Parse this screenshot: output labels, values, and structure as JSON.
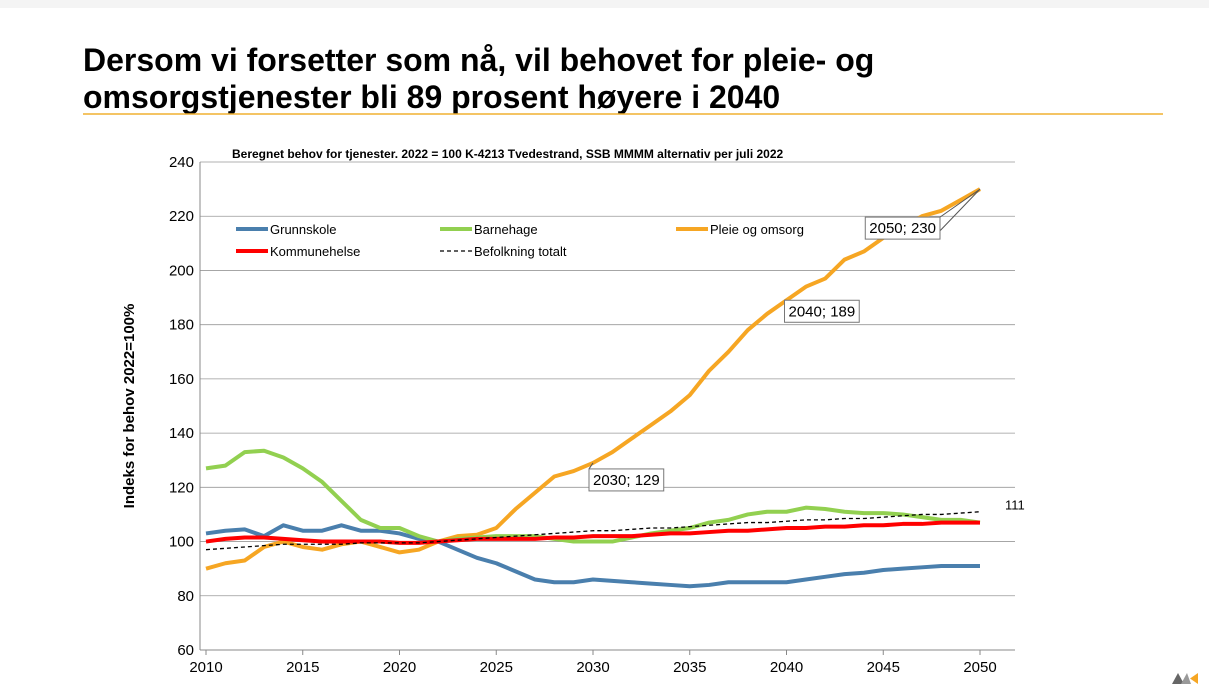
{
  "chart_data": {
    "type": "line",
    "title": [
      "Dersom vi forsetter som nå, vil behovet for pleie- og",
      "omsorgstjenester bli 89 prosent høyere i 2040"
    ],
    "subtitle": "Beregnet behov for tjenester.  2022 = 100  K-4213 Tvedestrand, SSB MMMM alternativ per juli 2022",
    "y_label": "Indeks for behov 2022=100%",
    "x": [
      2010,
      2011,
      2012,
      2013,
      2014,
      2015,
      2016,
      2017,
      2018,
      2019,
      2020,
      2021,
      2022,
      2023,
      2024,
      2025,
      2026,
      2027,
      2028,
      2029,
      2030,
      2031,
      2032,
      2033,
      2034,
      2035,
      2036,
      2037,
      2038,
      2039,
      2040,
      2041,
      2042,
      2043,
      2044,
      2045,
      2046,
      2047,
      2048,
      2049,
      2050
    ],
    "xlim": [
      2010,
      2050
    ],
    "xticks": [
      2010,
      2015,
      2020,
      2025,
      2030,
      2035,
      2040,
      2045,
      2050
    ],
    "ylim": [
      60,
      240
    ],
    "yticks": [
      60,
      80,
      100,
      120,
      140,
      160,
      180,
      200,
      220,
      240
    ],
    "grid": true,
    "series": [
      {
        "name": "Grunnskole",
        "color": "#4a7fad",
        "values": [
          103,
          104,
          104.5,
          102,
          106,
          104,
          104,
          106,
          104,
          104,
          103,
          101,
          100,
          97,
          94,
          92,
          89,
          86,
          85,
          85,
          86,
          85.5,
          85,
          84.5,
          84,
          83.5,
          84,
          85,
          85,
          85,
          85,
          86,
          87,
          88,
          88.5,
          89.5,
          90,
          90.5,
          91,
          91,
          91
        ]
      },
      {
        "name": "Barnehage",
        "color": "#92d050",
        "values": [
          127,
          128,
          133,
          133.5,
          131,
          127,
          122,
          115,
          108,
          105,
          105,
          102,
          100,
          101,
          101.5,
          102,
          102,
          102,
          101,
          100,
          100,
          100,
          101.5,
          103,
          104,
          105,
          107,
          108,
          110,
          111,
          111,
          112.5,
          112,
          111,
          110.5,
          110.5,
          110,
          109,
          108,
          108,
          107
        ]
      },
      {
        "name": "Pleie og omsorg",
        "color": "#f6a623",
        "values": [
          90,
          92,
          93,
          98,
          100,
          98,
          97,
          99,
          100,
          98,
          96,
          97,
          100,
          102,
          102.5,
          105,
          112,
          118,
          124,
          126,
          129,
          133,
          138,
          143,
          148,
          154,
          163,
          170,
          178,
          184,
          189,
          194,
          197,
          204,
          207,
          212,
          216,
          220,
          222,
          226,
          230
        ],
        "value_labels": [
          null,
          null,
          null,
          null,
          null,
          null,
          null,
          null,
          null,
          null,
          null,
          null,
          null,
          null,
          null,
          null,
          null,
          null,
          null,
          null,
          "2030; 129",
          null,
          null,
          null,
          null,
          null,
          null,
          null,
          null,
          null,
          "2040; 189",
          null,
          null,
          null,
          null,
          null,
          null,
          null,
          null,
          null,
          "2050; 230"
        ]
      },
      {
        "name": "Kommunehelse",
        "color": "#ff0000",
        "values": [
          100,
          101,
          101.5,
          101.5,
          101,
          100.5,
          100,
          100,
          100,
          100,
          99.5,
          99.5,
          100,
          100.5,
          101,
          101,
          101,
          101,
          101.5,
          101.5,
          102,
          102,
          102,
          102.5,
          103,
          103,
          103.5,
          104,
          104,
          104.5,
          105,
          105,
          105.5,
          105.5,
          106,
          106,
          106.5,
          106.5,
          107,
          107,
          107
        ]
      },
      {
        "name": "Befolkning totalt",
        "color": "#000000",
        "dashed": true,
        "values": [
          97,
          97.5,
          98,
          98.5,
          99,
          99,
          99,
          99,
          99.5,
          99.5,
          99.5,
          99.5,
          100,
          100.5,
          101,
          101.5,
          102,
          102.5,
          103,
          103.5,
          104,
          104,
          104.5,
          105,
          105,
          105.5,
          106,
          106.5,
          107,
          107,
          107.5,
          108,
          108,
          108.5,
          108.5,
          109,
          109.5,
          110,
          110,
          110.5,
          111
        ],
        "value_labels": [
          null,
          null,
          null,
          null,
          null,
          null,
          null,
          null,
          null,
          null,
          null,
          null,
          null,
          null,
          null,
          null,
          null,
          null,
          null,
          null,
          null,
          null,
          null,
          null,
          null,
          null,
          null,
          null,
          null,
          null,
          null,
          null,
          null,
          null,
          null,
          null,
          null,
          null,
          null,
          null,
          "111"
        ]
      }
    ]
  }
}
